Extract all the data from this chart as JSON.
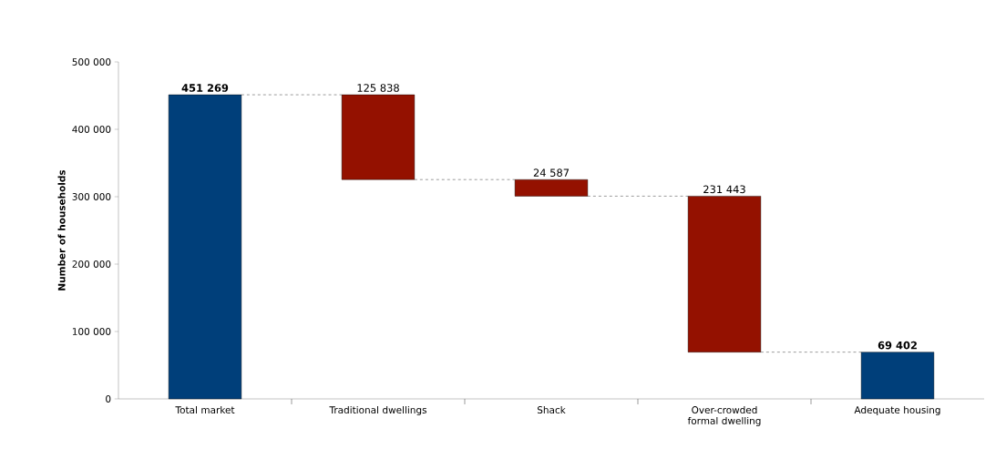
{
  "chart_data": {
    "type": "bar",
    "ylabel": "Number of households",
    "categories": [
      "Total market",
      "Traditional dwellings",
      "Shack",
      "Over-crowded formal dwelling",
      "Adequate housing"
    ],
    "values": [
      451269,
      125838,
      24587,
      231443,
      69402
    ],
    "base": [
      0,
      325431,
      300844,
      69401,
      0
    ],
    "colors": [
      "#003f7a",
      "#941100",
      "#941100",
      "#941100",
      "#003f7a"
    ],
    "value_labels": [
      "451 269",
      "125 838",
      "24 587",
      "231 443",
      "69 402"
    ],
    "ylim": [
      0,
      500000
    ],
    "yticks": [
      {
        "value": 0,
        "label": "0"
      },
      {
        "value": 100000,
        "label": "100 000"
      },
      {
        "value": 200000,
        "label": "200 000"
      },
      {
        "value": 300000,
        "label": "300 000"
      },
      {
        "value": 400000,
        "label": "400 000"
      },
      {
        "value": 500000,
        "label": "500 000"
      }
    ],
    "grid": false
  }
}
